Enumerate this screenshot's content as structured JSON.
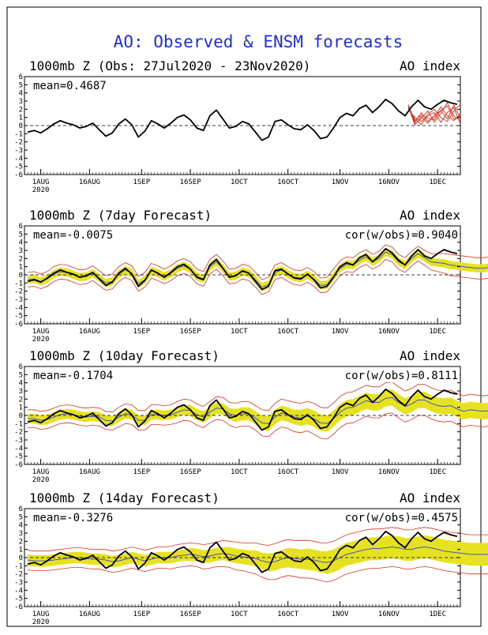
{
  "title": "AO: Observed & ENSM forecasts",
  "colors": {
    "title": "#1f2ee6",
    "observed": "#000000",
    "ensemble_mean": "#3344cc",
    "spread_band": "#e6e221",
    "spread_edges": "#e03020",
    "red_members": "#e03020",
    "zero_line": "#000000"
  },
  "x_ticks": [
    "1AUG",
    "16AUG",
    "1SEP",
    "16SEP",
    "1OCT",
    "16OCT",
    "1NOV",
    "16NOV",
    "1DEC"
  ],
  "x_year": "2020",
  "y_ticks": [
    "6",
    "5",
    "4",
    "3",
    "2",
    "1",
    "0",
    "-1",
    "-2",
    "-3",
    "-4",
    "-5",
    "-6"
  ],
  "chart_data": [
    {
      "type": "line",
      "left_title": "1000mb Z (Obs: 27Jul2020 - 23Nov2020)",
      "right_title": "AO index",
      "mean_label": "mean=0.4687",
      "cor_label": "",
      "ylim": [
        -6,
        6
      ],
      "x_start": "2020-07-27",
      "x_end": "2020-12-08",
      "observed": [
        -0.8,
        -0.6,
        -0.9,
        -0.4,
        0.2,
        0.6,
        0.3,
        0.1,
        -0.3,
        -0.1,
        0.3,
        -0.5,
        -1.3,
        -0.9,
        0.2,
        0.8,
        0.1,
        -1.4,
        -0.7,
        0.6,
        0.2,
        -0.3,
        0.3,
        1.0,
        1.3,
        0.7,
        -0.3,
        -0.6,
        1.2,
        1.9,
        0.8,
        -0.3,
        -0.1,
        0.5,
        0.2,
        -0.8,
        -1.8,
        -1.4,
        0.5,
        0.7,
        0.1,
        -0.4,
        -0.5,
        0.1,
        -0.6,
        -1.6,
        -1.4,
        -0.3,
        1.0,
        1.5,
        1.2,
        2.1,
        2.5,
        1.6,
        2.3,
        3.2,
        2.7,
        1.8,
        1.2,
        2.3,
        3.1,
        2.3,
        2.0,
        2.6,
        3.1,
        2.8,
        2.6
      ],
      "red_members_start": 118,
      "red_members_step": 2,
      "red_members": [
        [
          2.2,
          0.6,
          1.3,
          0.9,
          0.7,
          1.9,
          2.4,
          0.8,
          1.1
        ],
        [
          2.4,
          0.2,
          0.9,
          1.8,
          0.4,
          1.5,
          2.8,
          1.2,
          0.6
        ],
        [
          2.0,
          1.0,
          0.5,
          1.2,
          1.6,
          0.4,
          1.6,
          2.2,
          0.2
        ],
        [
          2.6,
          0.4,
          1.6,
          0.5,
          1.0,
          2.3,
          1.2,
          0.6,
          1.4
        ],
        [
          2.1,
          0.8,
          0.1,
          1.4,
          2.0,
          1.0,
          0.5,
          1.8,
          2.6
        ],
        [
          2.3,
          0.1,
          1.1,
          0.3,
          1.3,
          1.8,
          0.8,
          2.5,
          0.9
        ]
      ]
    },
    {
      "type": "line",
      "left_title": "1000mb Z (7day Forecast)",
      "right_title": "AO index",
      "mean_label": "mean=-0.0075",
      "cor_label": "cor(w/obs)=0.9040",
      "ylim": [
        -6,
        6
      ],
      "x_start": "2020-07-27",
      "x_end": "2020-12-08",
      "observed": [
        -0.8,
        -0.6,
        -0.9,
        -0.4,
        0.2,
        0.6,
        0.3,
        0.1,
        -0.3,
        -0.1,
        0.3,
        -0.5,
        -1.3,
        -0.9,
        0.2,
        0.8,
        0.1,
        -1.4,
        -0.7,
        0.6,
        0.2,
        -0.3,
        0.3,
        1.0,
        1.3,
        0.7,
        -0.3,
        -0.6,
        1.2,
        1.9,
        0.8,
        -0.3,
        -0.1,
        0.5,
        0.2,
        -0.8,
        -1.8,
        -1.4,
        0.5,
        0.7,
        0.1,
        -0.4,
        -0.5,
        0.1,
        -0.6,
        -1.6,
        -1.4,
        -0.3,
        1.0,
        1.5,
        1.2,
        2.1,
        2.5,
        1.6,
        2.3,
        3.2,
        2.7,
        1.8,
        1.2,
        2.3,
        3.1,
        2.3,
        2.0,
        2.6,
        3.1,
        2.8,
        2.6
      ],
      "mean": [
        -0.6,
        -0.5,
        -0.8,
        -0.5,
        0.1,
        0.4,
        0.3,
        0.0,
        -0.3,
        -0.2,
        0.2,
        -0.4,
        -1.0,
        -0.8,
        0.1,
        0.6,
        0.2,
        -1.1,
        -0.6,
        0.5,
        0.2,
        -0.2,
        0.2,
        0.8,
        1.1,
        0.7,
        -0.2,
        -0.5,
        1.0,
        1.6,
        0.8,
        -0.2,
        -0.1,
        0.4,
        0.2,
        -0.6,
        -1.5,
        -1.2,
        0.3,
        0.6,
        0.1,
        -0.3,
        -0.4,
        0.0,
        -0.5,
        -1.3,
        -1.2,
        -0.2,
        0.8,
        1.3,
        1.2,
        1.8,
        2.2,
        1.6,
        2.0,
        2.8,
        2.5,
        1.6,
        1.2,
        2.0,
        2.6,
        2.1,
        1.6,
        1.5,
        1.4,
        1.2,
        1.1,
        1.0,
        0.9,
        0.8,
        0.8,
        0.9
      ],
      "spread": [
        0.5,
        0.5,
        0.5,
        0.5,
        0.5,
        0.5,
        0.5,
        0.5,
        0.5,
        0.5,
        0.5,
        0.5,
        0.5,
        0.5,
        0.5,
        0.5,
        0.5,
        0.5,
        0.5,
        0.5,
        0.5,
        0.5,
        0.5,
        0.5,
        0.5,
        0.5,
        0.5,
        0.5,
        0.5,
        0.5,
        0.5,
        0.5,
        0.5,
        0.5,
        0.5,
        0.5,
        0.5,
        0.5,
        0.5,
        0.5,
        0.5,
        0.5,
        0.5,
        0.5,
        0.5,
        0.5,
        0.5,
        0.5,
        0.5,
        0.5,
        0.5,
        0.5,
        0.5,
        0.5,
        0.5,
        0.5,
        0.5,
        0.5,
        0.5,
        0.5,
        0.5,
        0.5,
        0.5,
        0.5,
        0.5,
        0.5,
        0.5,
        0.5,
        0.5,
        0.5,
        0.5,
        0.5
      ],
      "outer": [
        0.9,
        0.9,
        0.9,
        0.9,
        0.9,
        0.9,
        0.9,
        0.9,
        0.9,
        0.9,
        0.9,
        0.9,
        0.9,
        0.9,
        0.9,
        0.9,
        0.9,
        0.9,
        0.9,
        0.9,
        0.9,
        0.9,
        0.9,
        0.9,
        0.9,
        0.9,
        0.9,
        0.9,
        0.9,
        0.9,
        0.9,
        0.9,
        0.9,
        0.9,
        0.9,
        0.9,
        0.9,
        0.9,
        0.9,
        0.9,
        0.9,
        0.9,
        0.9,
        0.9,
        0.9,
        0.9,
        0.9,
        0.9,
        0.9,
        0.9,
        0.9,
        0.9,
        0.9,
        0.9,
        0.9,
        0.9,
        0.9,
        0.9,
        0.9,
        0.9,
        0.9,
        0.9,
        1.0,
        1.1,
        1.2,
        1.3,
        1.3,
        1.3,
        1.3,
        1.3,
        1.3,
        1.3
      ]
    },
    {
      "type": "line",
      "left_title": "1000mb Z (10day Forecast)",
      "right_title": "AO index",
      "mean_label": "mean=-0.1704",
      "cor_label": "cor(w/obs)=0.8111",
      "ylim": [
        -6,
        6
      ],
      "x_start": "2020-07-27",
      "x_end": "2020-12-08",
      "observed": [
        -0.8,
        -0.6,
        -0.9,
        -0.4,
        0.2,
        0.6,
        0.3,
        0.1,
        -0.3,
        -0.1,
        0.3,
        -0.5,
        -1.3,
        -0.9,
        0.2,
        0.8,
        0.1,
        -1.4,
        -0.7,
        0.6,
        0.2,
        -0.3,
        0.3,
        1.0,
        1.3,
        0.7,
        -0.3,
        -0.6,
        1.2,
        1.9,
        0.8,
        -0.3,
        -0.1,
        0.5,
        0.2,
        -0.8,
        -1.8,
        -1.4,
        0.5,
        0.7,
        0.1,
        -0.4,
        -0.5,
        0.1,
        -0.6,
        -1.6,
        -1.4,
        -0.3,
        1.0,
        1.5,
        1.2,
        2.1,
        2.5,
        1.6,
        2.3,
        3.2,
        2.7,
        1.8,
        1.2,
        2.3,
        3.1,
        2.3,
        2.0,
        2.6,
        3.1,
        2.8,
        2.6
      ],
      "mean": [
        -0.4,
        -0.4,
        -0.6,
        -0.5,
        -0.2,
        0.1,
        0.2,
        0.1,
        -0.1,
        -0.2,
        -0.1,
        -0.2,
        -0.6,
        -0.7,
        -0.2,
        0.2,
        0.1,
        -0.6,
        -0.6,
        0.1,
        0.1,
        0.0,
        0.1,
        0.4,
        0.7,
        0.6,
        0.1,
        -0.2,
        0.4,
        0.9,
        0.8,
        0.2,
        0.0,
        0.2,
        0.2,
        -0.3,
        -0.9,
        -1.0,
        -0.2,
        0.3,
        0.1,
        -0.2,
        -0.3,
        -0.1,
        -0.4,
        -0.9,
        -1.0,
        -0.4,
        0.4,
        0.9,
        1.0,
        1.4,
        1.8,
        1.6,
        1.6,
        2.1,
        2.2,
        1.6,
        1.1,
        1.4,
        1.9,
        1.9,
        1.5,
        1.2,
        1.1,
        1.2,
        0.8,
        0.5,
        0.7,
        0.6,
        0.5,
        0.6
      ],
      "spread": [
        0.6,
        0.6,
        0.6,
        0.6,
        0.6,
        0.6,
        0.6,
        0.6,
        0.6,
        0.6,
        0.6,
        0.6,
        0.6,
        0.6,
        0.6,
        0.6,
        0.6,
        0.6,
        0.6,
        0.6,
        0.6,
        0.6,
        0.6,
        0.6,
        0.6,
        0.7,
        0.7,
        0.7,
        0.7,
        0.7,
        0.7,
        0.7,
        0.8,
        0.8,
        0.8,
        0.8,
        0.9,
        0.9,
        0.9,
        0.9,
        0.9,
        0.9,
        1.0,
        1.0,
        1.0,
        1.0,
        1.0,
        1.0,
        1.0,
        1.0,
        1.0,
        1.0,
        1.0,
        1.0,
        1.0,
        1.0,
        1.0,
        1.0,
        1.0,
        1.0,
        1.0,
        1.0,
        1.0,
        1.0,
        1.0,
        1.0,
        1.0,
        1.0,
        1.0,
        1.0,
        1.0,
        1.0
      ],
      "outer": [
        1.1,
        1.1,
        1.1,
        1.1,
        1.1,
        1.1,
        1.1,
        1.1,
        1.1,
        1.1,
        1.1,
        1.1,
        1.1,
        1.1,
        1.2,
        1.2,
        1.2,
        1.2,
        1.2,
        1.2,
        1.2,
        1.2,
        1.2,
        1.3,
        1.3,
        1.3,
        1.3,
        1.3,
        1.3,
        1.4,
        1.4,
        1.4,
        1.5,
        1.5,
        1.5,
        1.5,
        1.6,
        1.6,
        1.7,
        1.7,
        1.7,
        1.8,
        1.8,
        1.8,
        1.9,
        1.9,
        1.9,
        1.9,
        1.9,
        1.9,
        1.9,
        1.9,
        1.9,
        1.9,
        1.9,
        1.9,
        1.9,
        1.9,
        1.9,
        1.9,
        1.9,
        1.9,
        1.9,
        1.9,
        1.9,
        1.9,
        1.9,
        1.9,
        1.9,
        1.9,
        1.9,
        1.9
      ]
    },
    {
      "type": "line",
      "left_title": "1000mb Z (14day Forecast)",
      "right_title": "AO index",
      "mean_label": "mean=-0.3276",
      "cor_label": "cor(w/obs)=0.4575",
      "ylim": [
        -6,
        6
      ],
      "x_start": "2020-07-27",
      "x_end": "2020-12-08",
      "observed": [
        -0.8,
        -0.6,
        -0.9,
        -0.4,
        0.2,
        0.6,
        0.3,
        0.1,
        -0.3,
        -0.1,
        0.3,
        -0.5,
        -1.3,
        -0.9,
        0.2,
        0.8,
        0.1,
        -1.4,
        -0.7,
        0.6,
        0.2,
        -0.3,
        0.3,
        1.0,
        1.3,
        0.7,
        -0.3,
        -0.6,
        1.2,
        1.9,
        0.8,
        -0.3,
        -0.1,
        0.5,
        0.2,
        -0.8,
        -1.8,
        -1.4,
        0.5,
        0.7,
        0.1,
        -0.4,
        -0.5,
        0.1,
        -0.6,
        -1.6,
        -1.4,
        -0.3,
        1.0,
        1.5,
        1.2,
        2.1,
        2.5,
        1.6,
        2.3,
        3.2,
        2.7,
        1.8,
        1.2,
        2.3,
        3.1,
        2.3,
        2.0,
        2.6,
        3.1,
        2.8,
        2.6
      ],
      "mean": [
        -0.3,
        -0.4,
        -0.4,
        -0.4,
        -0.3,
        -0.2,
        -0.1,
        0.0,
        0.0,
        -0.1,
        -0.2,
        -0.2,
        -0.3,
        -0.5,
        -0.4,
        -0.2,
        0.0,
        -0.2,
        -0.4,
        -0.2,
        0.0,
        0.0,
        0.0,
        0.2,
        0.3,
        0.4,
        0.3,
        0.1,
        0.2,
        0.4,
        0.5,
        0.4,
        0.2,
        0.1,
        0.0,
        -0.1,
        -0.4,
        -0.6,
        -0.5,
        -0.2,
        0.0,
        -0.1,
        -0.2,
        -0.2,
        -0.3,
        -0.5,
        -0.6,
        -0.4,
        0.0,
        0.4,
        0.6,
        0.8,
        1.0,
        1.1,
        1.1,
        1.2,
        1.3,
        1.2,
        1.0,
        1.0,
        1.2,
        1.3,
        1.2,
        1.0,
        0.8,
        0.7,
        0.6,
        0.5,
        0.4,
        0.4,
        0.4,
        0.4
      ],
      "spread": [
        0.7,
        0.7,
        0.7,
        0.7,
        0.7,
        0.7,
        0.7,
        0.7,
        0.7,
        0.7,
        0.7,
        0.7,
        0.7,
        0.7,
        0.7,
        0.7,
        0.7,
        0.7,
        0.7,
        0.7,
        0.7,
        0.7,
        0.7,
        0.7,
        0.7,
        0.8,
        0.8,
        0.8,
        0.8,
        0.8,
        0.8,
        0.9,
        0.9,
        0.9,
        0.9,
        1.0,
        1.0,
        1.1,
        1.1,
        1.1,
        1.2,
        1.2,
        1.2,
        1.3,
        1.3,
        1.3,
        1.4,
        1.4,
        1.4,
        1.4,
        1.4,
        1.4,
        1.4,
        1.4,
        1.4,
        1.4,
        1.4,
        1.4,
        1.4,
        1.4,
        1.4,
        1.4,
        1.4,
        1.4,
        1.4,
        1.4,
        1.4,
        1.4,
        1.4,
        1.4,
        1.4,
        1.4
      ],
      "outer": [
        1.2,
        1.2,
        1.2,
        1.2,
        1.2,
        1.2,
        1.2,
        1.2,
        1.2,
        1.2,
        1.2,
        1.2,
        1.3,
        1.3,
        1.3,
        1.3,
        1.3,
        1.3,
        1.3,
        1.3,
        1.3,
        1.3,
        1.4,
        1.4,
        1.4,
        1.4,
        1.4,
        1.5,
        1.5,
        1.5,
        1.6,
        1.6,
        1.7,
        1.7,
        1.8,
        1.9,
        2.0,
        2.1,
        2.2,
        2.2,
        2.2,
        2.2,
        2.3,
        2.3,
        2.3,
        2.3,
        2.4,
        2.4,
        2.4,
        2.4,
        2.4,
        2.4,
        2.4,
        2.4,
        2.4,
        2.4,
        2.4,
        2.4,
        2.4,
        2.4,
        2.4,
        2.4,
        2.4,
        2.4,
        2.4,
        2.4,
        2.4,
        2.4,
        2.4,
        2.4,
        2.4,
        2.4
      ]
    }
  ]
}
